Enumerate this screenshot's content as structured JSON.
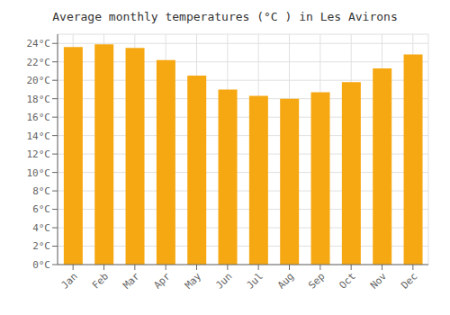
{
  "chart_data": {
    "type": "bar",
    "title": "Average monthly temperatures (°C ) in Les Avirons",
    "categories": [
      "Jan",
      "Feb",
      "Mar",
      "Apr",
      "May",
      "Jun",
      "Jul",
      "Aug",
      "Sep",
      "Oct",
      "Nov",
      "Dec"
    ],
    "values": [
      23.6,
      23.9,
      23.5,
      22.2,
      20.5,
      19.0,
      18.3,
      18.0,
      18.7,
      19.8,
      21.3,
      22.8
    ],
    "color": "#F6A812",
    "ylim": [
      0,
      25
    ],
    "yticks": [
      {
        "value": 0,
        "label": "0°C"
      },
      {
        "value": 2,
        "label": "2°C"
      },
      {
        "value": 4,
        "label": "4°C"
      },
      {
        "value": 6,
        "label": "6°C"
      },
      {
        "value": 8,
        "label": "8°C"
      },
      {
        "value": 10,
        "label": "10°C"
      },
      {
        "value": 12,
        "label": "12°C"
      },
      {
        "value": 14,
        "label": "14°C"
      },
      {
        "value": 16,
        "label": "16°C"
      },
      {
        "value": 18,
        "label": "18°C"
      },
      {
        "value": 20,
        "label": "20°C"
      },
      {
        "value": 22,
        "label": "22°C"
      },
      {
        "value": 24,
        "label": "24°C"
      }
    ],
    "grid": true
  }
}
